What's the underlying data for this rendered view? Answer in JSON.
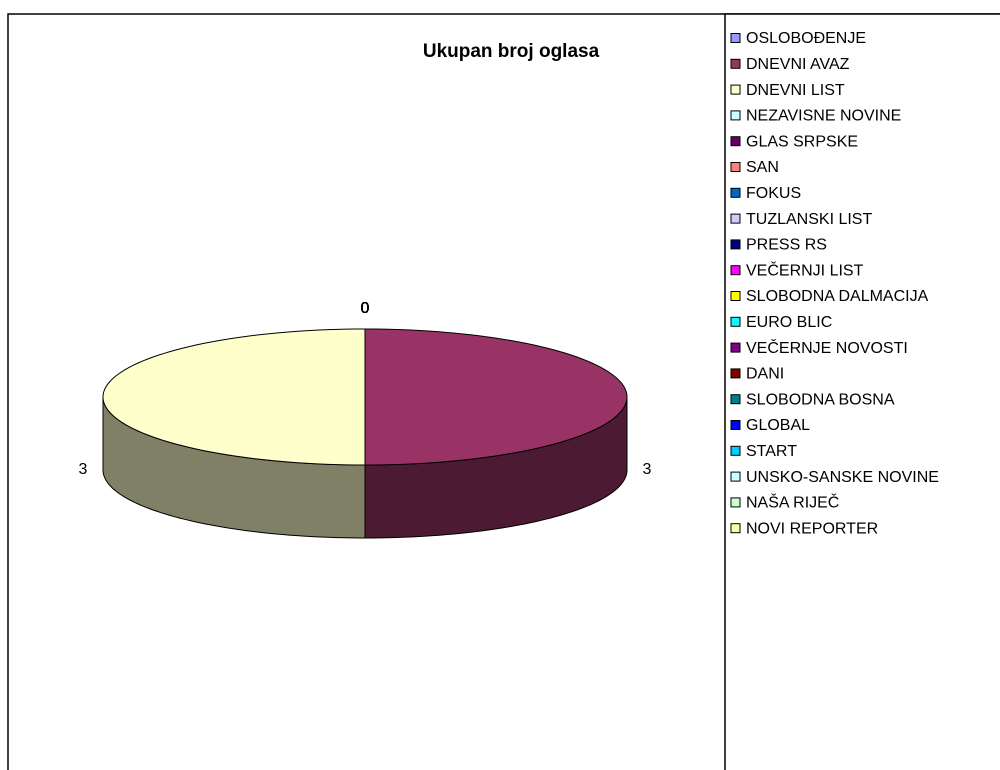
{
  "chart_data": {
    "type": "pie3d",
    "title": "Ukupan broj oglasa",
    "categories": [
      "OSLOBOĐENJE",
      "DNEVNI AVAZ",
      "DNEVNI LIST",
      "NEZAVISNE NOVINE",
      "GLAS SRPSKE",
      "SAN",
      "FOKUS",
      "TUZLANSKI LIST",
      "PRESS RS",
      "VEČERNJI LIST",
      "SLOBODNA DALMACIJA",
      "EURO BLIC",
      "VEČERNJE NOVOSTI",
      "DANI",
      "SLOBODNA BOSNA",
      "GLOBAL",
      "START",
      "UNSKO-SANSKE NOVINE",
      "NAŠA RIJEČ",
      "NOVI REPORTER"
    ],
    "values": [
      0,
      3,
      3,
      0,
      0,
      0,
      0,
      0,
      0,
      0,
      0,
      0,
      0,
      0,
      0,
      0,
      0,
      0,
      0,
      0
    ],
    "colors": [
      "#9999ff",
      "#993366",
      "#ffffcc",
      "#ccffff",
      "#660066",
      "#ff8080",
      "#0066cc",
      "#ccccff",
      "#000080",
      "#ff00ff",
      "#ffff00",
      "#00ffff",
      "#800080",
      "#800000",
      "#008080",
      "#0000ff",
      "#00ccff",
      "#ccffff",
      "#ccffcc",
      "#ffff99"
    ],
    "legend": "right"
  }
}
